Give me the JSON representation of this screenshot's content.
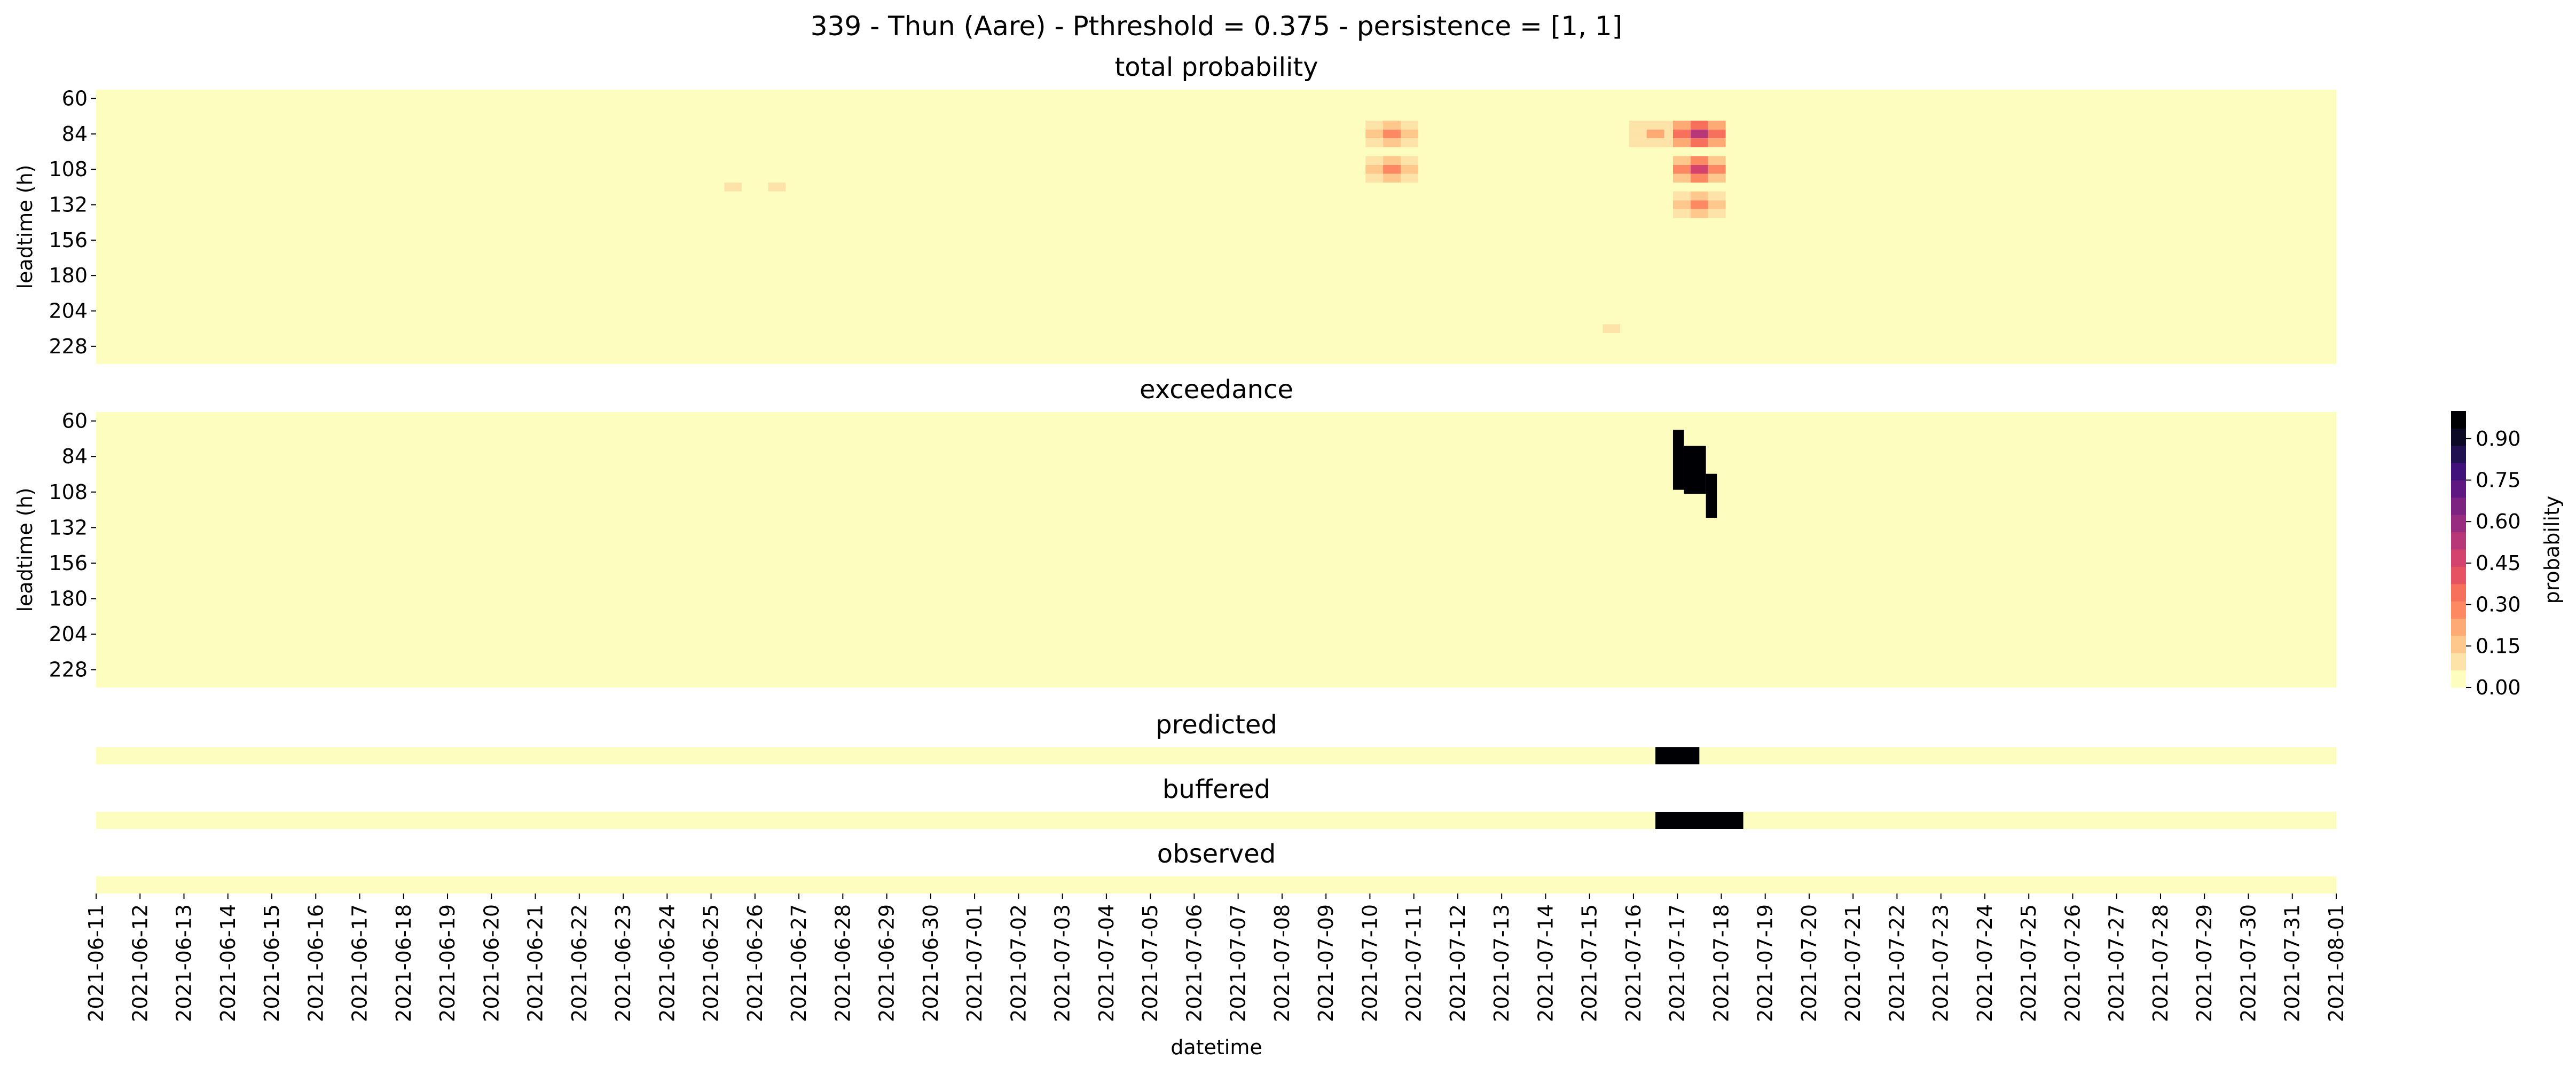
{
  "chart_data": {
    "type": "heatmap",
    "title": "339 - Thun (Aare) - Pthreshold = 0.375 - persistence = [1, 1]",
    "xlabel": "datetime",
    "x_tick_labels": [
      "2021-06-11",
      "2021-06-12",
      "2021-06-13",
      "2021-06-14",
      "2021-06-15",
      "2021-06-16",
      "2021-06-17",
      "2021-06-18",
      "2021-06-19",
      "2021-06-20",
      "2021-06-21",
      "2021-06-22",
      "2021-06-23",
      "2021-06-24",
      "2021-06-25",
      "2021-06-26",
      "2021-06-27",
      "2021-06-28",
      "2021-06-29",
      "2021-06-30",
      "2021-07-01",
      "2021-07-02",
      "2021-07-03",
      "2021-07-04",
      "2021-07-05",
      "2021-07-06",
      "2021-07-07",
      "2021-07-08",
      "2021-07-09",
      "2021-07-10",
      "2021-07-11",
      "2021-07-12",
      "2021-07-13",
      "2021-07-14",
      "2021-07-15",
      "2021-07-16",
      "2021-07-17",
      "2021-07-18",
      "2021-07-19",
      "2021-07-20",
      "2021-07-21",
      "2021-07-22",
      "2021-07-23",
      "2021-07-24",
      "2021-07-25",
      "2021-07-26",
      "2021-07-27",
      "2021-07-28",
      "2021-07-29",
      "2021-07-30",
      "2021-07-31",
      "2021-08-01"
    ],
    "colorbar": {
      "label": "probability",
      "ticks": [
        "0.00",
        "0.15",
        "0.30",
        "0.45",
        "0.60",
        "0.75",
        "0.90"
      ],
      "range": [
        0,
        1
      ],
      "colors": [
        "#fcfdbf",
        "#fde3a7",
        "#fec88c",
        "#feaa74",
        "#fc8961",
        "#f7705c",
        "#e75263",
        "#d3436e",
        "#b73779",
        "#982d80",
        "#7c2382",
        "#5f187f",
        "#40117a",
        "#221150",
        "#0b0924",
        "#000004"
      ]
    },
    "panels": [
      {
        "title": "total probability",
        "ylabel": "leadtime (h)",
        "y_tick_labels": [
          "60",
          "84",
          "108",
          "132",
          "156",
          "180",
          "204",
          "228"
        ],
        "hotspots": [
          {
            "date": "2021-06-25",
            "leadtime_h": 120,
            "probability": 0.08
          },
          {
            "date": "2021-06-26",
            "leadtime_h": 120,
            "probability": 0.08
          },
          {
            "date": "2021-07-07",
            "leadtime_h": 192,
            "probability": 0.06
          },
          {
            "date": "2021-07-10",
            "leadtime_h": 84,
            "probability": 0.28
          },
          {
            "date": "2021-07-10",
            "leadtime_h": 108,
            "probability": 0.25
          },
          {
            "date": "2021-07-16",
            "leadtime_h": 84,
            "probability": 0.2
          },
          {
            "date": "2021-07-17",
            "leadtime_h": 84,
            "probability": 0.55
          },
          {
            "date": "2021-07-17",
            "leadtime_h": 108,
            "probability": 0.45
          },
          {
            "date": "2021-07-17",
            "leadtime_h": 132,
            "probability": 0.25
          },
          {
            "date": "2021-07-15",
            "leadtime_h": 216,
            "probability": 0.08
          },
          {
            "date": "2021-07-29",
            "leadtime_h": 180,
            "probability": 0.06
          }
        ]
      },
      {
        "title": "exceedance",
        "ylabel": "leadtime (h)",
        "y_tick_labels": [
          "60",
          "84",
          "108",
          "132",
          "156",
          "180",
          "204",
          "228"
        ],
        "exceeded": [
          {
            "date": "2021-07-17",
            "leadtime_h_from": 66,
            "leadtime_h_to": 120,
            "value": 1
          }
        ]
      },
      {
        "title": "predicted",
        "events": [
          {
            "from": "2021-07-16",
            "to": "2021-07-17",
            "value": 1
          }
        ]
      },
      {
        "title": "buffered",
        "events": [
          {
            "from": "2021-07-16",
            "to": "2021-07-18",
            "value": 1
          }
        ]
      },
      {
        "title": "observed",
        "events": []
      }
    ]
  }
}
